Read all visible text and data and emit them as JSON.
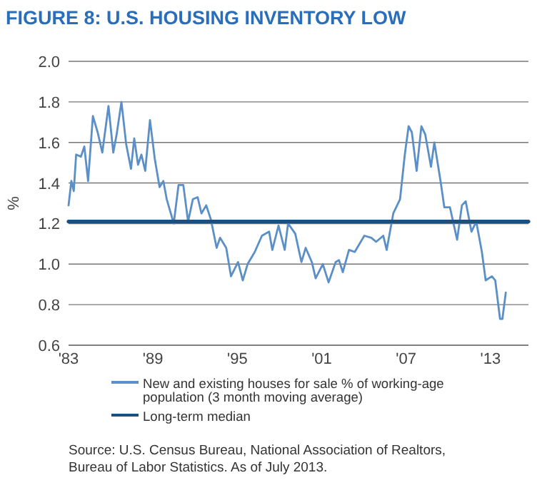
{
  "chart_data": {
    "type": "line",
    "title": "FIGURE 8: U.S. HOUSING INVENTORY LOW",
    "ylabel": "%",
    "xlim": [
      1983,
      2015.7
    ],
    "xticks": [
      {
        "value": 1983,
        "label": "'83"
      },
      {
        "value": 1989,
        "label": "'89"
      },
      {
        "value": 1995,
        "label": "'95"
      },
      {
        "value": 2001,
        "label": "'01"
      },
      {
        "value": 2007,
        "label": "'07"
      },
      {
        "value": 2013,
        "label": "'13"
      }
    ],
    "ylim": [
      0.6,
      2.0
    ],
    "yticks": [
      {
        "value": 0.6,
        "label": "0.6"
      },
      {
        "value": 0.8,
        "label": "0.8"
      },
      {
        "value": 1.0,
        "label": "1.0"
      },
      {
        "value": 1.2,
        "label": "1.2"
      },
      {
        "value": 1.4,
        "label": "1.4"
      },
      {
        "value": 1.6,
        "label": "1.6"
      },
      {
        "value": 1.8,
        "label": "1.8"
      },
      {
        "value": 2.0,
        "label": "2.0"
      }
    ],
    "grid": "y",
    "legend": "bottom",
    "line_style": "solid",
    "marker": "none",
    "series": [
      {
        "name": "New and existing houses for sale % of working-age population (3 month moving average)",
        "color": "#5b8fc7",
        "x": [
          1983.0,
          1983.2,
          1983.37,
          1983.54,
          1983.88,
          1984.12,
          1984.39,
          1984.73,
          1985.07,
          1985.4,
          1985.84,
          1986.18,
          1986.42,
          1986.76,
          1987.1,
          1987.44,
          1987.67,
          1987.94,
          1988.18,
          1988.45,
          1988.79,
          1989.13,
          1989.47,
          1989.74,
          1989.98,
          1990.48,
          1990.82,
          1991.16,
          1991.5,
          1991.84,
          1992.18,
          1992.45,
          1992.79,
          1993.12,
          1993.53,
          1993.77,
          1994.21,
          1994.55,
          1995.05,
          1995.39,
          1995.73,
          1996.24,
          1996.75,
          1997.26,
          1997.49,
          1997.93,
          1998.37,
          1998.61,
          1999.12,
          1999.56,
          1999.86,
          2000.3,
          2000.57,
          2001.08,
          2001.49,
          2001.99,
          2002.23,
          2002.5,
          2002.94,
          2003.35,
          2004.03,
          2004.53,
          2004.87,
          2005.38,
          2005.62,
          2006.09,
          2006.57,
          2006.91,
          2007.18,
          2007.41,
          2007.75,
          2008.09,
          2008.36,
          2008.77,
          2009.01,
          2009.45,
          2009.72,
          2010.12,
          2010.63,
          2010.97,
          2011.24,
          2011.65,
          2011.99,
          2012.39,
          2012.66,
          2013.1,
          2013.34,
          2013.68,
          2013.85,
          2014.09
        ],
        "values": [
          1.29,
          1.41,
          1.36,
          1.54,
          1.53,
          1.58,
          1.41,
          1.73,
          1.65,
          1.55,
          1.78,
          1.55,
          1.64,
          1.8,
          1.59,
          1.47,
          1.62,
          1.49,
          1.54,
          1.46,
          1.71,
          1.52,
          1.38,
          1.41,
          1.32,
          1.2,
          1.39,
          1.39,
          1.21,
          1.32,
          1.33,
          1.25,
          1.29,
          1.22,
          1.08,
          1.13,
          1.08,
          0.94,
          1.01,
          0.92,
          1.0,
          1.06,
          1.14,
          1.16,
          1.07,
          1.19,
          1.07,
          1.2,
          1.15,
          1.01,
          1.08,
          1.01,
          0.93,
          1.0,
          0.91,
          1.01,
          1.02,
          0.96,
          1.07,
          1.06,
          1.14,
          1.13,
          1.11,
          1.14,
          1.07,
          1.25,
          1.32,
          1.54,
          1.68,
          1.65,
          1.46,
          1.68,
          1.64,
          1.48,
          1.6,
          1.41,
          1.28,
          1.28,
          1.12,
          1.29,
          1.31,
          1.16,
          1.21,
          1.06,
          0.92,
          0.94,
          0.92,
          0.73,
          0.73,
          0.86
        ]
      },
      {
        "name": "Long-term median",
        "color": "#1b4f80",
        "x": [
          1983,
          2015.7
        ],
        "values": [
          1.21,
          1.21
        ]
      }
    ],
    "annotations": [
      "Source: U.S. Census Bureau, National Association of Realtors, Bureau of Labor Statistics. As of July 2013."
    ]
  }
}
